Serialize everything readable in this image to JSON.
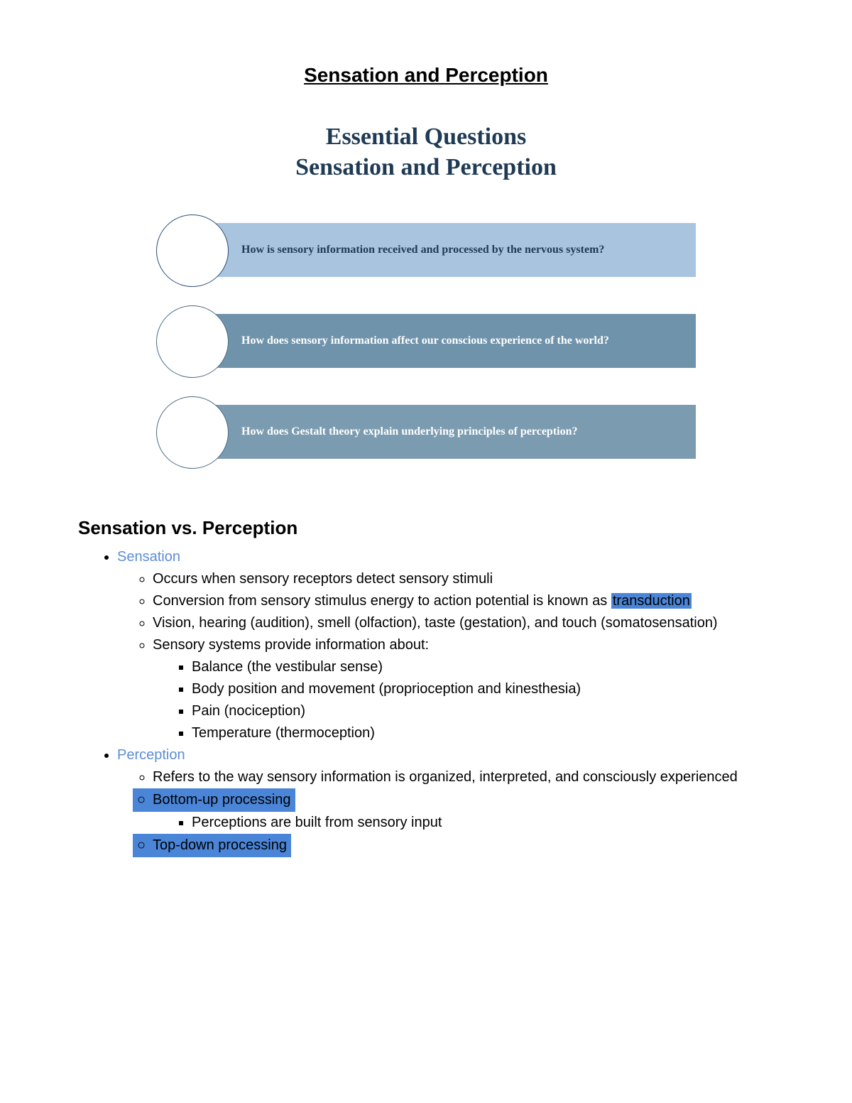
{
  "title": "Sensation and Perception",
  "infographic": {
    "heading_line1": "Essential Questions",
    "heading_line2": "Sensation and Perception",
    "heading_color": "#1f3a54",
    "heading_fontsize": 34,
    "questions": [
      {
        "text": "How is sensory information received and processed by the nervous system?",
        "bar_color": "#a9c4df",
        "text_color": "#1f3a54",
        "circle_border": "#2a4e73"
      },
      {
        "text": "How does sensory information affect our conscious experience of the world?",
        "bar_color": "#6f93ab",
        "text_color": "#ffffff",
        "circle_border": "#4a6a85"
      },
      {
        "text": "How does Gestalt theory explain underlying principles of perception?",
        "bar_color": "#7b9bb0",
        "text_color": "#ffffff",
        "circle_border": "#4a6a85"
      }
    ]
  },
  "section": {
    "heading": "Sensation vs. Perception",
    "sensation": {
      "label": "Sensation",
      "label_color": "#5b8dd6",
      "items": {
        "i1": "Occurs when sensory receptors detect sensory stimuli",
        "i2_pre": "Conversion from sensory stimulus energy to action potential is known as ",
        "i2_hl": "transduction",
        "i3": "Vision, hearing (audition), smell (olfaction), taste (gestation), and touch (somatosensation)",
        "i4": "Sensory systems provide information about:",
        "sub": {
          "s1": "Balance (the vestibular sense)",
          "s2": "Body position and movement (proprioception and kinesthesia)",
          "s3": "Pain (nociception)",
          "s4": "Temperature (thermoception)"
        }
      }
    },
    "perception": {
      "label": "Perception",
      "label_color": "#5b8dd6",
      "items": {
        "i1": "Refers to the way sensory information is organized, interpreted, and consciously experienced",
        "i2_hl": "Bottom-up processing",
        "i2_sub": "Perceptions are built from sensory input",
        "i3_hl": "Top-down processing"
      }
    },
    "highlight_color": "#4a85d8"
  }
}
